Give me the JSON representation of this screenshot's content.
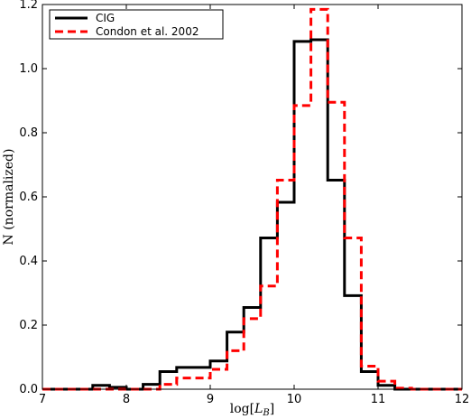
{
  "chart_data": {
    "type": "histogram",
    "xlabel": "log[L_B]",
    "xlabel_parts": {
      "main": "log[",
      "var": "L",
      "sub": "B",
      "close": "]"
    },
    "ylabel": "N (normalized)",
    "xlim": [
      7,
      12
    ],
    "ylim": [
      0,
      1.2
    ],
    "xticks": [
      "7",
      "8",
      "9",
      "10",
      "11",
      "12"
    ],
    "yticks": [
      "0.0",
      "0.2",
      "0.4",
      "0.6",
      "0.8",
      "1.0",
      "1.2"
    ],
    "grid": false,
    "legend_position": "top-left",
    "bin_edges": [
      7.0,
      7.2,
      7.4,
      7.6,
      7.8,
      8.0,
      8.2,
      8.4,
      8.6,
      8.8,
      9.0,
      9.2,
      9.4,
      9.6,
      9.8,
      10.0,
      10.2,
      10.4,
      10.6,
      10.8,
      11.0,
      11.2,
      11.4,
      11.6,
      11.8,
      12.0
    ],
    "series": [
      {
        "name": "CIG",
        "color": "#000000",
        "style": "solid",
        "values": [
          0,
          0,
          0,
          0.012,
          0.006,
          0,
          0.015,
          0.055,
          0.068,
          0.068,
          0.088,
          0.178,
          0.255,
          0.472,
          0.583,
          1.085,
          1.09,
          0.652,
          0.292,
          0.055,
          0.012,
          0,
          0,
          0,
          0
        ]
      },
      {
        "name": "Condon et al. 2002",
        "color": "#ff0000",
        "style": "dashed",
        "values": [
          0,
          0,
          0,
          0,
          0,
          0,
          0,
          0.015,
          0.035,
          0.035,
          0.062,
          0.12,
          0.22,
          0.322,
          0.652,
          0.885,
          1.185,
          0.895,
          0.472,
          0.072,
          0.025,
          0.003,
          0,
          0,
          0
        ]
      }
    ]
  }
}
